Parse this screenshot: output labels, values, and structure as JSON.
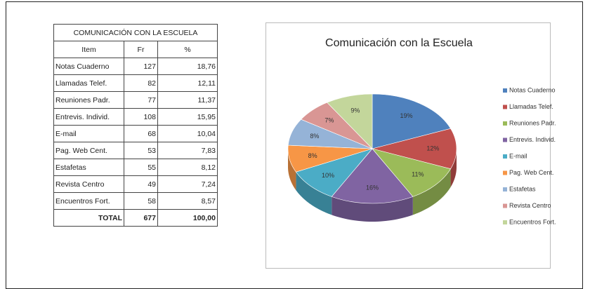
{
  "table": {
    "title": "COMUNICACIÓN CON LA ESCUELA",
    "header": [
      "Item",
      "Fr",
      "%"
    ],
    "rows": [
      [
        "Notas Cuaderno",
        "127",
        "18,76"
      ],
      [
        "Llamadas Telef.",
        "82",
        "12,11"
      ],
      [
        "Reuniones Padr.",
        "77",
        "11,37"
      ],
      [
        "Entrevis. Individ.",
        "108",
        "15,95"
      ],
      [
        "E-mail",
        "68",
        "10,04"
      ],
      [
        "Pag. Web Cent.",
        "53",
        "7,83"
      ],
      [
        "Estafetas",
        "55",
        "8,12"
      ],
      [
        "Revista Centro",
        "49",
        "7,24"
      ],
      [
        "Encuentros Fort.",
        "58",
        "8,57"
      ]
    ],
    "total": [
      "TOTAL",
      "677",
      "100,00"
    ]
  },
  "chart_data": {
    "type": "pie",
    "title": "Comunicación con la Escuela",
    "categories": [
      "Notas Cuaderno",
      "Llamadas Telef.",
      "Reuniones Padr.",
      "Entrevis. Individ.",
      "E-mail",
      "Pag. Web Cent.",
      "Estafetas",
      "Revista Centro",
      "Encuentros Fort."
    ],
    "values": [
      19,
      12,
      11,
      16,
      10,
      8,
      8,
      7,
      9
    ],
    "value_labels": [
      "19%",
      "12%",
      "11%",
      "16%",
      "10%",
      "8%",
      "8%",
      "7%",
      "9%"
    ],
    "colors": [
      "#4f81bd",
      "#c0504d",
      "#9bbb59",
      "#8064a2",
      "#4bacc6",
      "#f79646",
      "#95b3d7",
      "#d99694",
      "#c3d69b"
    ],
    "legend": "right"
  }
}
